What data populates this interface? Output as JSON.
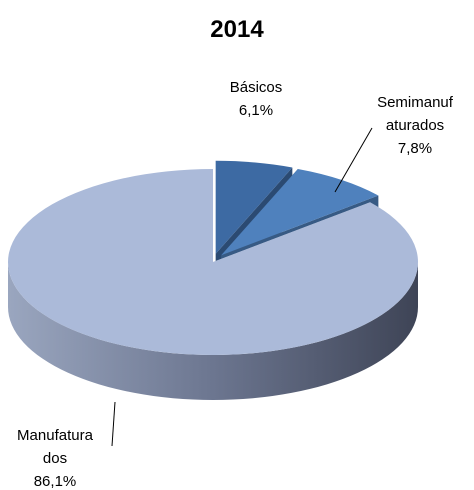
{
  "chart_data": {
    "type": "pie3d",
    "title": "2014",
    "categories": [
      "Básicos",
      "Semimanufaturados",
      "Manufaturados"
    ],
    "values": [
      6.1,
      7.8,
      86.1
    ],
    "value_labels": [
      "6,1%",
      "7,8%",
      "86,1%"
    ],
    "colors": [
      "#3d6aa3",
      "#4f81bd",
      "#abbad9"
    ]
  }
}
